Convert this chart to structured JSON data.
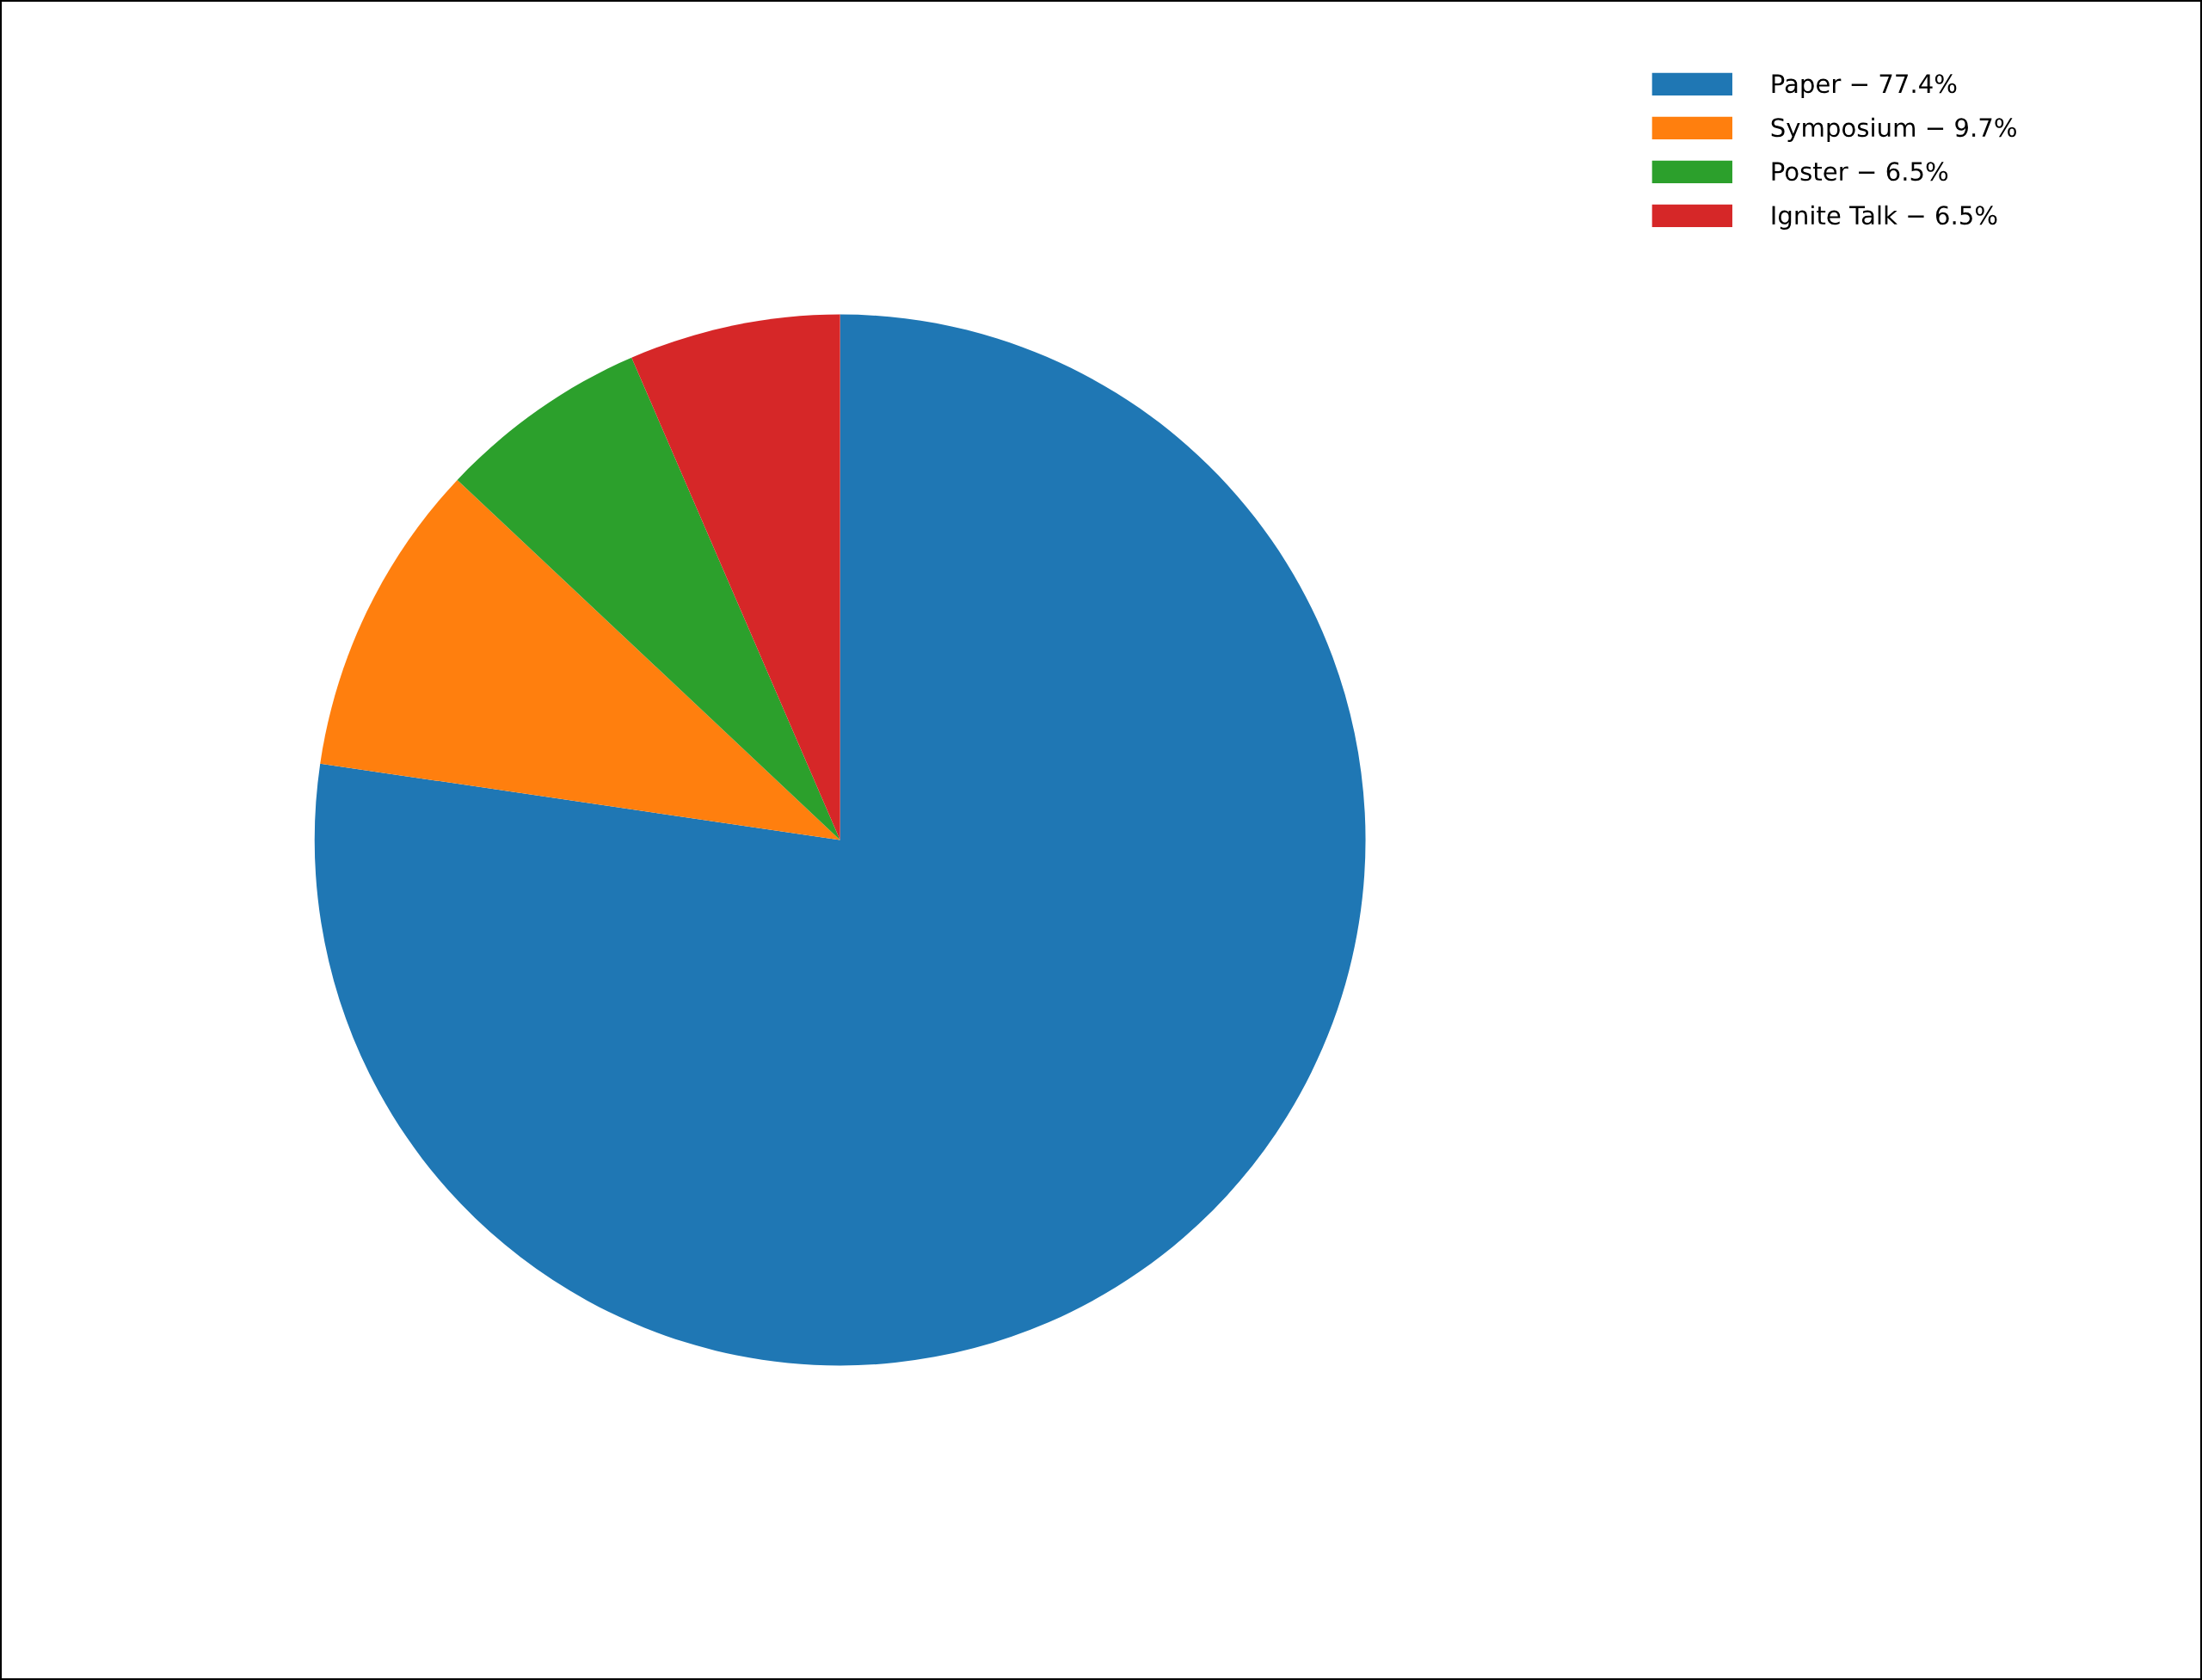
{
  "chart_data": {
    "type": "pie",
    "categories": [
      "Paper − 77.4%",
      "Symposium − 9.7%",
      "Poster − 6.5%",
      "Ignite Talk − 6.5%"
    ],
    "values": [
      77.4,
      9.7,
      6.5,
      6.5
    ],
    "colors": [
      "#1f77b4",
      "#ff7f0e",
      "#2ca02c",
      "#d62728"
    ],
    "legend": "top right"
  }
}
